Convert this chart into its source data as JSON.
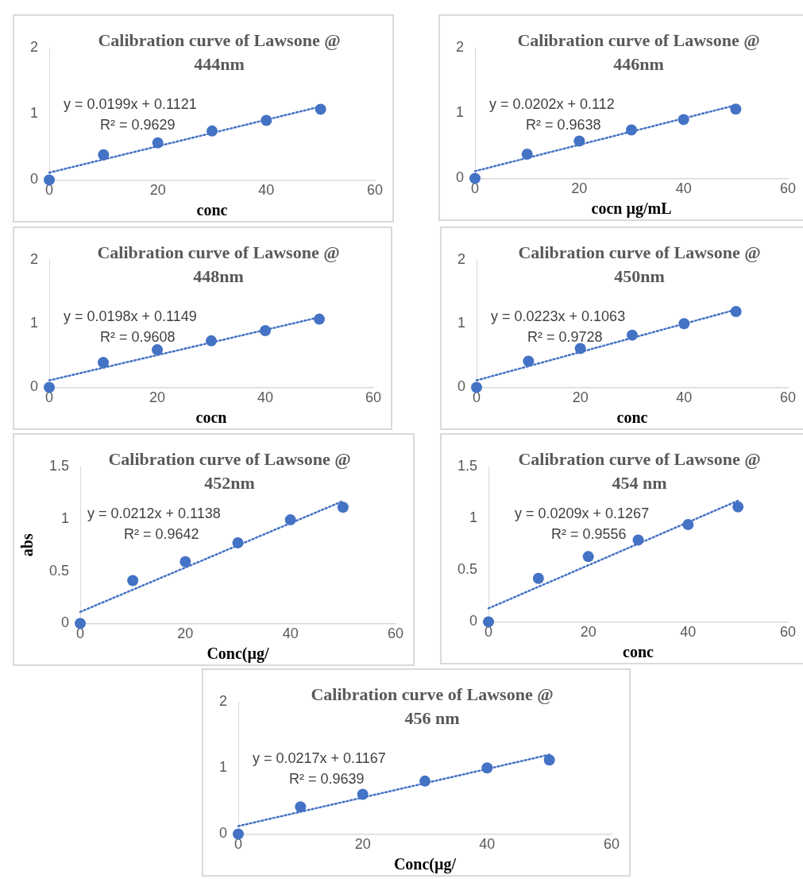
{
  "chart_data": [
    {
      "type": "scatter",
      "title": "Calibration curve of Lawsone @ 444nm",
      "xlabel": "conc",
      "xlim": [
        0,
        60
      ],
      "xticks": [
        0,
        20,
        40,
        60
      ],
      "ylim": [
        0,
        2
      ],
      "yticks": [
        0,
        1,
        2
      ],
      "grid": false,
      "legend": false,
      "annotations": [
        "y = 0.0199x + 0.1121",
        "R² = 0.9629"
      ],
      "series": [
        {
          "type": "scatter",
          "marker": "circle",
          "color": "#4472c4",
          "x": [
            0,
            10,
            20,
            30,
            40,
            50
          ],
          "values": [
            0,
            0.38,
            0.56,
            0.74,
            0.9,
            1.07
          ]
        },
        {
          "type": "line",
          "marker": "none",
          "line_style": "dotted",
          "color": "#4472c4",
          "x": [
            0,
            50
          ],
          "values": [
            0.11,
            1.11
          ]
        }
      ]
    },
    {
      "type": "scatter",
      "title": "Calibration curve of  Lawsone @ 446nm",
      "xlabel": "cocn µg/mL",
      "xlim": [
        0,
        60
      ],
      "xticks": [
        0,
        20,
        40,
        60
      ],
      "ylim": [
        0,
        2
      ],
      "yticks": [
        0,
        1,
        2
      ],
      "grid": false,
      "legend": false,
      "annotations": [
        "y = 0.0202x + 0.112",
        "R² = 0.9638"
      ],
      "series": [
        {
          "type": "scatter",
          "marker": "circle",
          "color": "#4472c4",
          "x": [
            0,
            10,
            20,
            30,
            40,
            50
          ],
          "values": [
            0,
            0.37,
            0.57,
            0.74,
            0.9,
            1.06
          ]
        },
        {
          "type": "line",
          "marker": "none",
          "line_style": "dotted",
          "color": "#4472c4",
          "x": [
            0,
            50
          ],
          "values": [
            0.11,
            1.12
          ]
        }
      ]
    },
    {
      "type": "scatter",
      "title": "Calibration curve of Lawsone @ 448nm",
      "xlabel": "cocn",
      "xlim": [
        0,
        60
      ],
      "xticks": [
        0,
        20,
        40,
        60
      ],
      "ylim": [
        0,
        2
      ],
      "yticks": [
        0,
        1,
        2
      ],
      "grid": false,
      "legend": false,
      "annotations": [
        "y = 0.0198x + 0.1149",
        "R² = 0.9608"
      ],
      "series": [
        {
          "type": "scatter",
          "marker": "circle",
          "color": "#4472c4",
          "x": [
            0,
            10,
            20,
            30,
            40,
            50
          ],
          "values": [
            0,
            0.39,
            0.59,
            0.73,
            0.89,
            1.07
          ]
        },
        {
          "type": "line",
          "marker": "none",
          "line_style": "dotted",
          "color": "#4472c4",
          "x": [
            0,
            50
          ],
          "values": [
            0.11,
            1.1
          ]
        }
      ]
    },
    {
      "type": "scatter",
      "title": "Calibration curve of Lawsone @ 450nm",
      "xlabel": "conc",
      "xlim": [
        0,
        60
      ],
      "xticks": [
        0,
        20,
        40,
        60
      ],
      "ylim": [
        0,
        2
      ],
      "yticks": [
        0,
        1,
        2
      ],
      "grid": false,
      "legend": false,
      "annotations": [
        "y = 0.0223x + 0.1063",
        "R² = 0.9728"
      ],
      "series": [
        {
          "type": "scatter",
          "marker": "circle",
          "color": "#4472c4",
          "x": [
            0,
            10,
            20,
            30,
            40,
            50
          ],
          "values": [
            0,
            0.41,
            0.61,
            0.82,
            1.0,
            1.19
          ]
        },
        {
          "type": "line",
          "marker": "none",
          "line_style": "dotted",
          "color": "#4472c4",
          "x": [
            0,
            50
          ],
          "values": [
            0.11,
            1.22
          ]
        }
      ]
    },
    {
      "type": "scatter",
      "title": "Calibration curve of Lawsone @ 452nm",
      "xlabel": "Conc(µg/",
      "ylabel": "abs",
      "xlim": [
        0,
        60
      ],
      "xticks": [
        0,
        20,
        40,
        60
      ],
      "ylim": [
        0,
        1.5
      ],
      "yticks": [
        0,
        0.5,
        1,
        1.5
      ],
      "grid": false,
      "legend": false,
      "annotations": [
        "y = 0.0212x + 0.1138",
        "R² = 0.9642"
      ],
      "series": [
        {
          "type": "scatter",
          "marker": "circle",
          "color": "#4472c4",
          "x": [
            0,
            10,
            20,
            30,
            40,
            50
          ],
          "values": [
            0,
            0.41,
            0.59,
            0.77,
            0.99,
            1.11
          ]
        },
        {
          "type": "line",
          "marker": "none",
          "line_style": "dotted",
          "color": "#4472c4",
          "x": [
            0,
            50
          ],
          "values": [
            0.11,
            1.17
          ]
        }
      ]
    },
    {
      "type": "scatter",
      "title": "Calibration curve of Lawsone @ 454 nm",
      "xlabel": "conc",
      "xlim": [
        0,
        60
      ],
      "xticks": [
        0,
        20,
        40,
        60
      ],
      "ylim": [
        0,
        1.5
      ],
      "yticks": [
        0,
        0.5,
        1,
        1.5
      ],
      "grid": false,
      "legend": false,
      "annotations": [
        "y = 0.0209x + 0.1267",
        "R² = 0.9556"
      ],
      "series": [
        {
          "type": "scatter",
          "marker": "circle",
          "color": "#4472c4",
          "x": [
            0,
            10,
            20,
            30,
            40,
            50
          ],
          "values": [
            0,
            0.42,
            0.63,
            0.79,
            0.94,
            1.11
          ]
        },
        {
          "type": "line",
          "marker": "none",
          "line_style": "dotted",
          "color": "#4472c4",
          "x": [
            0,
            50
          ],
          "values": [
            0.13,
            1.17
          ]
        }
      ]
    },
    {
      "type": "scatter",
      "title": "Calibration curve of Lawsone @ 456 nm",
      "xlabel": "Conc(µg/",
      "xlim": [
        0,
        60
      ],
      "xticks": [
        0,
        20,
        40,
        60
      ],
      "ylim": [
        0,
        2
      ],
      "yticks": [
        0,
        1,
        2
      ],
      "grid": false,
      "legend": false,
      "annotations": [
        "y = 0.0217x + 0.1167",
        "R² = 0.9639"
      ],
      "series": [
        {
          "type": "scatter",
          "marker": "circle",
          "color": "#4472c4",
          "x": [
            0,
            10,
            20,
            30,
            40,
            50
          ],
          "values": [
            0,
            0.41,
            0.6,
            0.8,
            1.0,
            1.12
          ]
        },
        {
          "type": "line",
          "marker": "none",
          "line_style": "dotted",
          "color": "#4472c4",
          "x": [
            0,
            50
          ],
          "values": [
            0.12,
            1.2
          ]
        }
      ]
    }
  ]
}
